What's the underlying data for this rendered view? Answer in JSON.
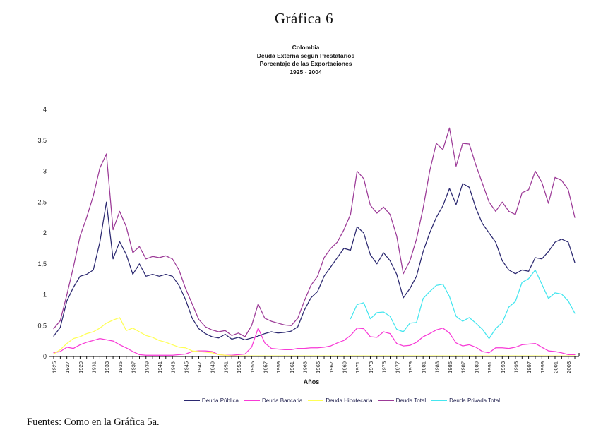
{
  "title": "Gráfica 6",
  "subtitle_lines": [
    "Colombia",
    "Deuda Externa según Prestatarios",
    "Porcentaje de las Exportaciones",
    "1925 - 2004"
  ],
  "source_note": "Fuentes: Como en la Gráfica 5a.",
  "chart_data": {
    "type": "line",
    "title": "Colombia - Deuda Externa según Prestatarios - Porcentaje de las Exportaciones - 1925-2004",
    "xlabel": "Años",
    "ylabel": "",
    "ylim": [
      0,
      4
    ],
    "y_tick_labels": [
      "0",
      "0,5",
      "1",
      "1,5",
      "2",
      "2,5",
      "3",
      "3,5",
      "4"
    ],
    "x_start": 1925,
    "x_end": 2004,
    "x_tick_label_years": [
      1925,
      1927,
      1929,
      1931,
      1933,
      1935,
      1937,
      1939,
      1941,
      1943,
      1945,
      1947,
      1949,
      1951,
      1953,
      1955,
      1957,
      1959,
      1961,
      1963,
      1965,
      1967,
      1969,
      1971,
      1973,
      1975,
      1977,
      1979,
      1981,
      1983,
      1985,
      1987,
      1989,
      1991,
      1993,
      1995,
      1997,
      1999,
      2001,
      2003
    ],
    "grid": false,
    "legend_position": "bottom",
    "axis_color": "#000000",
    "series": [
      {
        "name": "Deuda Pública",
        "color": "#2b2870",
        "start_year": 1925,
        "values": [
          0.33,
          0.47,
          0.9,
          1.12,
          1.3,
          1.33,
          1.4,
          1.85,
          2.5,
          1.58,
          1.86,
          1.65,
          1.33,
          1.5,
          1.3,
          1.33,
          1.3,
          1.33,
          1.3,
          1.15,
          0.92,
          0.62,
          0.45,
          0.37,
          0.32,
          0.3,
          0.36,
          0.28,
          0.31,
          0.27,
          0.3,
          0.33,
          0.37,
          0.4,
          0.38,
          0.39,
          0.41,
          0.48,
          0.75,
          0.95,
          1.05,
          1.3,
          1.45,
          1.6,
          1.75,
          1.72,
          2.1,
          2.0,
          1.65,
          1.5,
          1.68,
          1.55,
          1.33,
          0.95,
          1.1,
          1.3,
          1.7,
          2.0,
          2.25,
          2.44,
          2.72,
          2.46,
          2.8,
          2.74,
          2.4,
          2.15,
          2.0,
          1.85,
          1.55,
          1.4,
          1.34,
          1.4,
          1.38,
          1.6,
          1.58,
          1.7,
          1.85,
          1.9,
          1.85,
          1.52
        ]
      },
      {
        "name": "Deuda Bancaria",
        "color": "#f83ad6",
        "start_year": 1925,
        "values": [
          0.06,
          0.08,
          0.15,
          0.13,
          0.19,
          0.23,
          0.26,
          0.29,
          0.27,
          0.25,
          0.19,
          0.14,
          0.08,
          0.03,
          0.02,
          0.02,
          0.02,
          0.02,
          0.02,
          0.03,
          0.04,
          0.08,
          0.09,
          0.09,
          0.08,
          0.03,
          0.02,
          0.02,
          0.03,
          0.04,
          0.15,
          0.46,
          0.22,
          0.13,
          0.12,
          0.11,
          0.11,
          0.13,
          0.13,
          0.14,
          0.14,
          0.15,
          0.17,
          0.22,
          0.26,
          0.34,
          0.46,
          0.45,
          0.32,
          0.31,
          0.4,
          0.37,
          0.21,
          0.17,
          0.18,
          0.23,
          0.32,
          0.37,
          0.43,
          0.46,
          0.38,
          0.22,
          0.17,
          0.19,
          0.15,
          0.08,
          0.06,
          0.14,
          0.14,
          0.13,
          0.15,
          0.19,
          0.2,
          0.21,
          0.15,
          0.09,
          0.08,
          0.06,
          0.03,
          0.03
        ]
      },
      {
        "name": "Deuda Hipotecaria",
        "color": "#ffff55",
        "start_year": 1925,
        "values": [
          0.04,
          0.11,
          0.21,
          0.29,
          0.32,
          0.37,
          0.4,
          0.46,
          0.54,
          0.59,
          0.63,
          0.42,
          0.46,
          0.4,
          0.34,
          0.31,
          0.26,
          0.23,
          0.19,
          0.15,
          0.14,
          0.09,
          0.08,
          0.07,
          0.06,
          0.03,
          0.02,
          0.01,
          0.01,
          0.01,
          0.01,
          0.01,
          0.01,
          0.01,
          0.01,
          0.01,
          0.01,
          0.01,
          0.01,
          0.01,
          0.01,
          0.01,
          0.01,
          0.01,
          0.01,
          0.01,
          0.01,
          0.01,
          0.01,
          0.01,
          0.01,
          0.01,
          0.01,
          0.01,
          0.01,
          0.01,
          0.01,
          0.01,
          0.01,
          0.01,
          0.01,
          0.01,
          0.01,
          0.01,
          0.01,
          0.01,
          0.01,
          0.01,
          0.01,
          0.01,
          0.01,
          0.01,
          0.01,
          0.01,
          0.01,
          0.01,
          0.01,
          0.01,
          0.01,
          0.01
        ]
      },
      {
        "name": "Deuda Total",
        "color": "#9c3a97",
        "start_year": 1925,
        "values": [
          0.45,
          0.58,
          1.0,
          1.45,
          1.95,
          2.25,
          2.6,
          3.05,
          3.28,
          2.05,
          2.35,
          2.1,
          1.68,
          1.78,
          1.58,
          1.62,
          1.6,
          1.63,
          1.58,
          1.4,
          1.1,
          0.85,
          0.6,
          0.48,
          0.43,
          0.4,
          0.42,
          0.34,
          0.38,
          0.32,
          0.5,
          0.85,
          0.62,
          0.57,
          0.54,
          0.51,
          0.5,
          0.62,
          0.9,
          1.15,
          1.3,
          1.6,
          1.75,
          1.85,
          2.05,
          2.3,
          3.0,
          2.88,
          2.45,
          2.32,
          2.42,
          2.3,
          1.95,
          1.34,
          1.55,
          1.9,
          2.4,
          3.0,
          3.45,
          3.35,
          3.7,
          3.08,
          3.45,
          3.44,
          3.1,
          2.8,
          2.5,
          2.35,
          2.5,
          2.35,
          2.3,
          2.65,
          2.7,
          3.0,
          2.82,
          2.48,
          2.9,
          2.85,
          2.7,
          2.25
        ]
      },
      {
        "name": "Deuda Privada Total",
        "color": "#45e6ef",
        "start_year": 1970,
        "values": [
          0.61,
          0.84,
          0.87,
          0.61,
          0.71,
          0.72,
          0.65,
          0.44,
          0.4,
          0.54,
          0.55,
          0.94,
          1.05,
          1.15,
          1.17,
          0.97,
          0.65,
          0.57,
          0.63,
          0.54,
          0.44,
          0.29,
          0.45,
          0.55,
          0.8,
          0.89,
          1.2,
          1.26,
          1.4,
          1.17,
          0.94,
          1.03,
          1.01,
          0.9,
          0.7
        ]
      }
    ]
  }
}
